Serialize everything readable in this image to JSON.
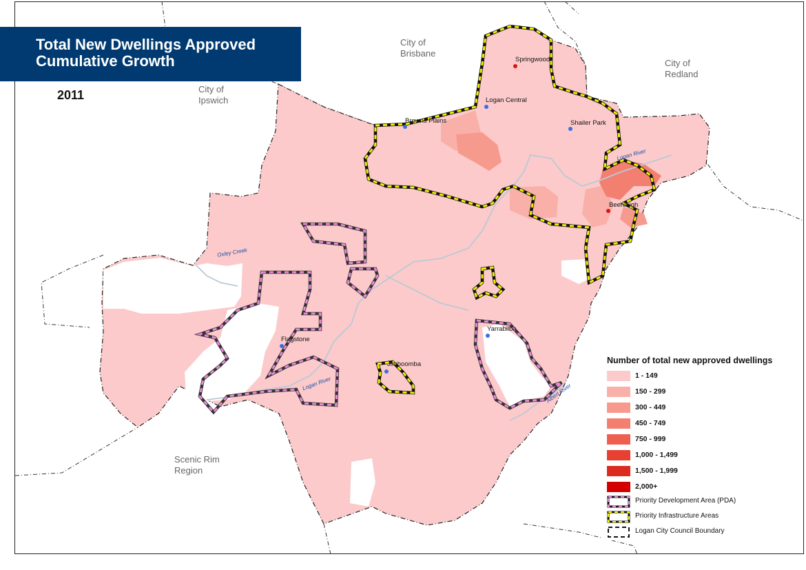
{
  "title": {
    "line1": "Total New Dwellings Approved",
    "line2": "Cumulative Growth"
  },
  "year": "2011",
  "regions": {
    "brisbane": [
      "City of",
      "Brisbane"
    ],
    "redland": [
      "City of",
      "Redland"
    ],
    "ipswich": [
      "City of",
      "Ipswich"
    ],
    "scenic_rim": [
      "Scenic Rim",
      "Region"
    ]
  },
  "places": [
    {
      "name": "Springwood",
      "dot_color": "#e01010"
    },
    {
      "name": "Logan Central",
      "dot_color": "#3b6fe0"
    },
    {
      "name": "Browns Plains",
      "dot_color": "#3b6fe0"
    },
    {
      "name": "Shailer Park",
      "dot_color": "#3b6fe0"
    },
    {
      "name": "Beenleigh",
      "dot_color": "#e01010"
    },
    {
      "name": "Yarrabilba",
      "dot_color": "#3b6fe0"
    },
    {
      "name": "Flagstone",
      "dot_color": "#3b6fe0"
    },
    {
      "name": "Jimboomba",
      "dot_color": "#3b6fe0"
    }
  ],
  "rivers": {
    "oxley": "Oxley Creek",
    "logan_north": "Logan River",
    "logan_south": "Logan River",
    "albert": "Albert River"
  },
  "legend": {
    "title": "Number of total new approved dwellings",
    "classes": [
      {
        "label": "1 - 149",
        "color": "#fccaca"
      },
      {
        "label": "150 - 299",
        "color": "#f9b0a8"
      },
      {
        "label": "300 - 449",
        "color": "#f79a8e"
      },
      {
        "label": "450 - 749",
        "color": "#f37f71"
      },
      {
        "label": "750 - 999",
        "color": "#ef5f50"
      },
      {
        "label": "1,000 - 1,499",
        "color": "#e83f33"
      },
      {
        "label": "1,500 - 1,999",
        "color": "#dd2a20"
      },
      {
        "label": "2,000+",
        "color": "#d40000"
      }
    ],
    "boundaries": [
      {
        "label": "Priority Development Area (PDA)",
        "stroke": "#e98ad7"
      },
      {
        "label": "Priority Infrastructure Areas",
        "stroke": "#f2f000"
      },
      {
        "label": "Logan City Council Boundary",
        "stroke": "#ffffff"
      }
    ]
  },
  "colors": {
    "title_bg": "#003a70",
    "pda": "#e98ad7",
    "pia": "#f2f000",
    "river": "#b9c9d6"
  }
}
